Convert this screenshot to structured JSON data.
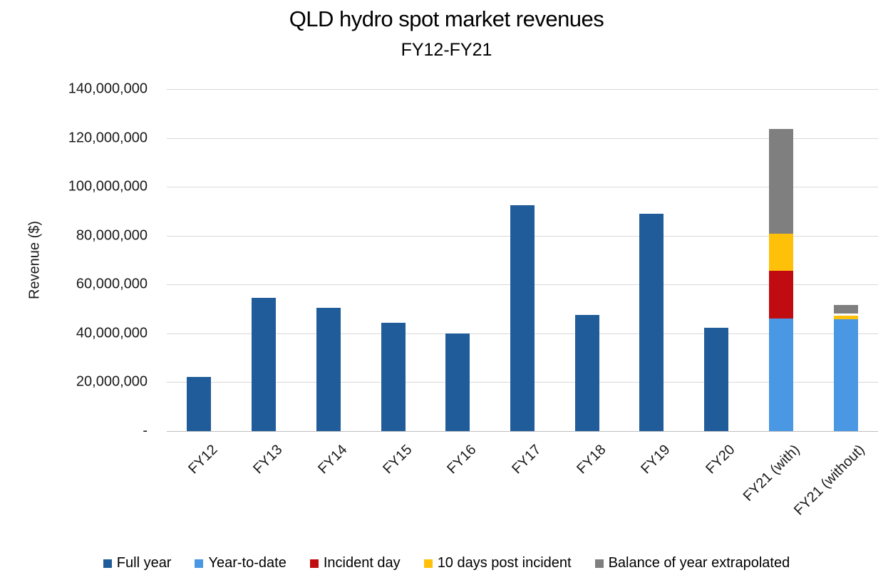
{
  "title": "QLD hydro spot market revenues",
  "subtitle": "FY12-FY21",
  "chart_data": {
    "type": "bar",
    "stacked": true,
    "title": "QLD hydro spot market revenues",
    "subtitle": "FY12-FY21",
    "xlabel": "",
    "ylabel": "Revenue ($)",
    "ylim": [
      0,
      140000000
    ],
    "ytick_interval": 20000000,
    "grid": true,
    "legend_position": "bottom",
    "background": "#ffffff",
    "categories": [
      "FY12",
      "FY13",
      "FY14",
      "FY15",
      "FY16",
      "FY17",
      "FY18",
      "FY19",
      "FY20",
      "FY21 (with)",
      "FY21 (without)"
    ],
    "yticks": [
      {
        "value": 140000000,
        "label": "140,000,000"
      },
      {
        "value": 120000000,
        "label": "120,000,000"
      },
      {
        "value": 100000000,
        "label": "100,000,000"
      },
      {
        "value": 80000000,
        "label": "80,000,000"
      },
      {
        "value": 60000000,
        "label": "60,000,000"
      },
      {
        "value": 40000000,
        "label": "40,000,000"
      },
      {
        "value": 20000000,
        "label": "20,000,000"
      },
      {
        "value": 0,
        "label": "-"
      }
    ],
    "series": [
      {
        "name": "Full year",
        "color": "#1F5C99",
        "in_legend": true,
        "values": [
          22200000,
          54500000,
          50400000,
          44300000,
          39900000,
          92400000,
          47500000,
          88900000,
          42300000,
          0,
          0
        ]
      },
      {
        "name": "Year-to-date",
        "color": "#4A97E4",
        "in_legend": true,
        "values": [
          0,
          0,
          0,
          0,
          0,
          0,
          0,
          0,
          0,
          46000000,
          45700000
        ]
      },
      {
        "name": "Incident day",
        "color": "#C00B10",
        "in_legend": true,
        "values": [
          0,
          0,
          0,
          0,
          0,
          0,
          0,
          0,
          0,
          19500000,
          0
        ]
      },
      {
        "name": "10 days post incident",
        "color": "#FFC00A",
        "in_legend": true,
        "values": [
          0,
          0,
          0,
          0,
          0,
          0,
          0,
          0,
          0,
          15400000,
          1500000
        ]
      },
      {
        "name": "white-gap",
        "color": "#FFFFFF",
        "in_legend": false,
        "values": [
          0,
          0,
          0,
          0,
          0,
          0,
          0,
          0,
          0,
          0,
          900000
        ]
      },
      {
        "name": "Balance of year extrapolated",
        "color": "#7F7F7F",
        "in_legend": true,
        "values": [
          0,
          0,
          0,
          0,
          0,
          0,
          0,
          0,
          0,
          42900000,
          3500000
        ]
      }
    ]
  }
}
